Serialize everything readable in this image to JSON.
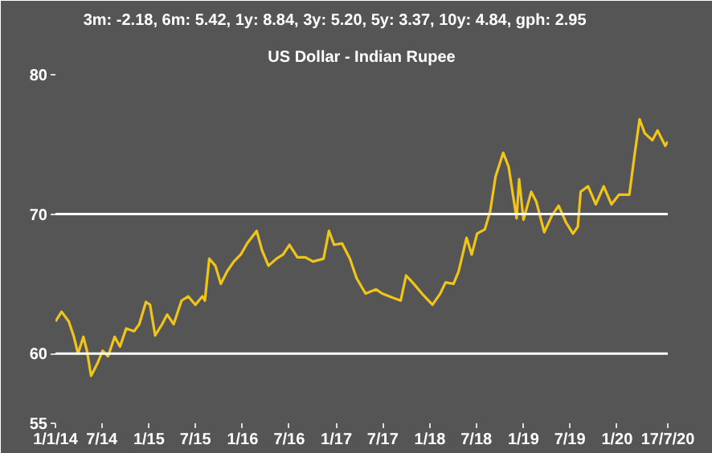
{
  "chart_data": {
    "type": "line",
    "title": "US Dollar - Indian Rupee",
    "subtitle": "3m: -2.18,   6m: 5.42,   1y: 8.84,   3y: 5.20,   5y: 3.37,   10y: 4.84,   gph: 2.95",
    "x": [
      "2014-01-01",
      "2014-01-25",
      "2014-02-22",
      "2014-03-14",
      "2014-03-30",
      "2014-04-20",
      "2014-05-04",
      "2014-05-20",
      "2014-06-14",
      "2014-07-04",
      "2014-07-25",
      "2014-08-20",
      "2014-09-10",
      "2014-10-04",
      "2014-11-04",
      "2014-11-24",
      "2014-12-20",
      "2015-01-05",
      "2015-01-25",
      "2015-02-21",
      "2015-03-13",
      "2015-04-07",
      "2015-05-08",
      "2015-06-03",
      "2015-07-01",
      "2015-07-28",
      "2015-08-07",
      "2015-08-24",
      "2015-09-17",
      "2015-10-08",
      "2015-11-02",
      "2015-11-28",
      "2015-12-25",
      "2016-01-19",
      "2016-02-25",
      "2016-03-17",
      "2016-04-11",
      "2016-05-12",
      "2016-06-07",
      "2016-07-02",
      "2016-08-02",
      "2016-09-02",
      "2016-10-02",
      "2016-11-12",
      "2016-12-03",
      "2016-12-23",
      "2017-01-23",
      "2017-02-23",
      "2017-03-21",
      "2017-04-25",
      "2017-06-05",
      "2017-06-29",
      "2017-08-10",
      "2017-09-09",
      "2017-09-30",
      "2017-10-30",
      "2017-12-01",
      "2018-01-11",
      "2018-02-10",
      "2018-03-03",
      "2018-04-03",
      "2018-04-23",
      "2018-05-24",
      "2018-06-13",
      "2018-07-04",
      "2018-08-03",
      "2018-08-24",
      "2018-09-14",
      "2018-10-14",
      "2018-11-04",
      "2018-12-05",
      "2018-12-15",
      "2019-01-01",
      "2019-01-31",
      "2019-02-20",
      "2019-03-23",
      "2019-04-22",
      "2019-05-18",
      "2019-06-16",
      "2019-07-13",
      "2019-08-01",
      "2019-08-12",
      "2019-09-10",
      "2019-10-10",
      "2019-11-10",
      "2019-12-10",
      "2020-01-09",
      "2020-02-18",
      "2020-03-09",
      "2020-03-29",
      "2020-04-18",
      "2020-05-18",
      "2020-06-07",
      "2020-07-07",
      "2020-07-17"
    ],
    "series": [
      {
        "color": "#f0c419",
        "values": [
          62.3,
          63.0,
          62.3,
          61.2,
          60.0,
          61.2,
          60.2,
          58.4,
          59.3,
          60.2,
          59.8,
          61.2,
          60.5,
          61.8,
          61.6,
          62.1,
          63.7,
          63.5,
          61.3,
          62.1,
          62.8,
          62.1,
          63.8,
          64.1,
          63.5,
          64.1,
          63.8,
          66.8,
          66.3,
          65.0,
          65.9,
          66.6,
          67.1,
          67.9,
          68.8,
          67.4,
          66.3,
          66.8,
          67.1,
          67.8,
          66.9,
          66.9,
          66.6,
          66.8,
          68.8,
          67.8,
          67.9,
          66.8,
          65.4,
          64.3,
          64.6,
          64.3,
          64.0,
          63.8,
          65.6,
          65.0,
          64.3,
          63.5,
          64.3,
          65.1,
          65.0,
          65.9,
          68.3,
          67.1,
          68.6,
          68.9,
          70.2,
          72.7,
          74.4,
          73.4,
          69.7,
          72.5,
          69.6,
          71.6,
          70.9,
          68.7,
          69.9,
          70.6,
          69.4,
          68.6,
          69.1,
          71.6,
          72.0,
          70.7,
          72.0,
          70.7,
          71.4,
          71.4,
          74.2,
          76.8,
          75.8,
          75.3,
          76.0,
          74.9,
          75.2
        ]
      }
    ],
    "xlim": [
      "2014-01-01",
      "2020-07-17"
    ],
    "xticks": [
      {
        "value": "2014-01-01",
        "label": "1/1/14"
      },
      {
        "value": "2014-07-01",
        "label": "7/14"
      },
      {
        "value": "2015-01-01",
        "label": "1/15"
      },
      {
        "value": "2015-07-01",
        "label": "7/15"
      },
      {
        "value": "2016-01-01",
        "label": "1/16"
      },
      {
        "value": "2016-07-01",
        "label": "7/16"
      },
      {
        "value": "2017-01-01",
        "label": "1/17"
      },
      {
        "value": "2017-07-01",
        "label": "7/17"
      },
      {
        "value": "2018-01-01",
        "label": "1/18"
      },
      {
        "value": "2018-07-01",
        "label": "7/18"
      },
      {
        "value": "2019-01-01",
        "label": "1/19"
      },
      {
        "value": "2019-07-01",
        "label": "7/19"
      },
      {
        "value": "2020-01-01",
        "label": "1/20"
      },
      {
        "value": "2020-07-17",
        "label": "17/7/20"
      }
    ],
    "ylim": [
      55,
      80
    ],
    "yticks": [
      55,
      60,
      70,
      80
    ],
    "ref_lines": [
      {
        "axis": "y",
        "value": 60,
        "color": "#ffffff"
      },
      {
        "axis": "y",
        "value": 70,
        "color": "#ffffff"
      }
    ],
    "grid": false,
    "marker": "none",
    "line_style": "solid"
  }
}
